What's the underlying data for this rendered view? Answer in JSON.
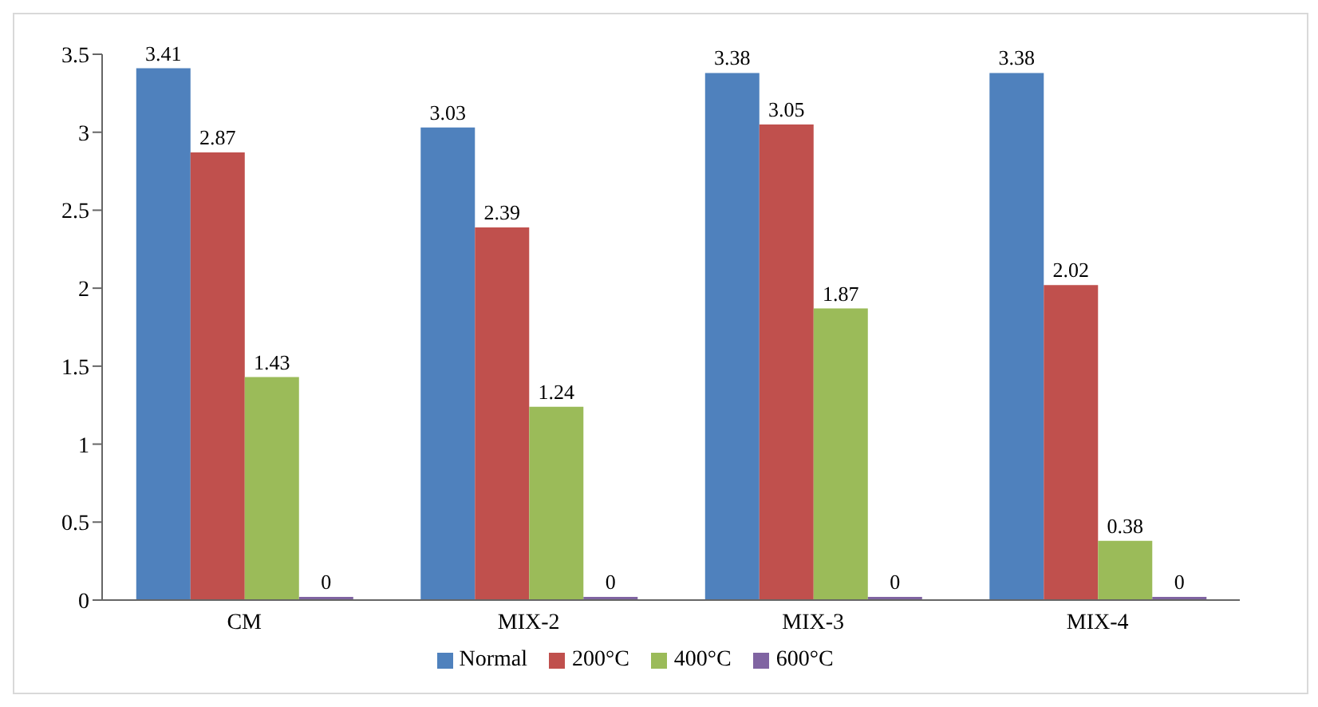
{
  "chart_data": {
    "type": "bar",
    "categories": [
      "CM",
      "MIX-2",
      "MIX-3",
      "MIX-4"
    ],
    "series": [
      {
        "name": "Normal",
        "color": "#4f81bd",
        "values": [
          3.41,
          3.03,
          3.38,
          3.38
        ]
      },
      {
        "name": "200°C",
        "color": "#c0504d",
        "values": [
          2.87,
          2.39,
          3.05,
          2.02
        ]
      },
      {
        "name": "400°C",
        "color": "#9bbb59",
        "values": [
          1.43,
          1.24,
          1.87,
          0.38
        ]
      },
      {
        "name": "600°C",
        "color": "#8064a2",
        "values": [
          0,
          0,
          0,
          0
        ]
      }
    ],
    "ylim": [
      0,
      3.5
    ],
    "yticks": [
      0,
      0.5,
      1,
      1.5,
      2,
      2.5,
      3,
      3.5
    ],
    "grid": false,
    "legend": "bottom",
    "data_labels": true
  }
}
